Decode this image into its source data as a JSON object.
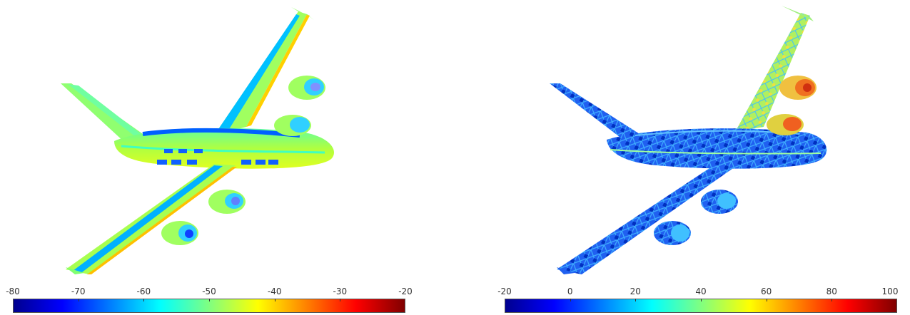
{
  "colorbars": {
    "left": {
      "min": -80,
      "max": -20,
      "ticks": [
        "-80",
        "-70",
        "-60",
        "-50",
        "-40",
        "-30",
        "-20"
      ]
    },
    "right": {
      "min": -20,
      "max": 100,
      "ticks": [
        "-20",
        "0",
        "20",
        "40",
        "60",
        "80",
        "100"
      ]
    }
  },
  "colormap": "jet"
}
